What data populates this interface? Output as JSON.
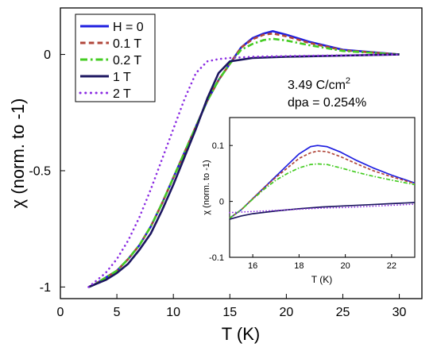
{
  "chart_data": [
    {
      "type": "line",
      "xlabel": "T (K)",
      "ylabel": "χ (norm. to -1)",
      "xlim": [
        0,
        32
      ],
      "ylim": [
        -1.05,
        0.2
      ],
      "xticks": [
        0,
        5,
        10,
        15,
        20,
        25,
        30
      ],
      "yticks": [
        0,
        -0.5,
        -1
      ],
      "ytick_labels": [
        "0",
        "-0.5",
        "-1"
      ],
      "grid": false,
      "legend_position": "top-left",
      "annotations": {
        "dose_value": "3.49 C/cm",
        "dose_exp": "2",
        "dpa": "dpa = 0.254%"
      },
      "series": [
        {
          "name": "H = 0",
          "color": "#1f1fe0",
          "style": "solid",
          "x": [
            2.5,
            3,
            4,
            5,
            6,
            7,
            8,
            9,
            10,
            11,
            12,
            13,
            14,
            15,
            16,
            17,
            18,
            18.8,
            20,
            22,
            25,
            30
          ],
          "y": [
            -1.0,
            -0.99,
            -0.96,
            -0.93,
            -0.88,
            -0.82,
            -0.74,
            -0.64,
            -0.53,
            -0.42,
            -0.31,
            -0.2,
            -0.11,
            -0.04,
            0.03,
            0.07,
            0.09,
            0.1,
            0.085,
            0.055,
            0.02,
            0.0
          ]
        },
        {
          "name": "0.1 T",
          "color": "#b0463a",
          "style": "dashed",
          "x": [
            2.5,
            3,
            4,
            5,
            6,
            7,
            8,
            9,
            10,
            11,
            12,
            13,
            14,
            15,
            16,
            17,
            18,
            18.8,
            20,
            22,
            25,
            30
          ],
          "y": [
            -1.0,
            -0.99,
            -0.96,
            -0.93,
            -0.88,
            -0.82,
            -0.74,
            -0.64,
            -0.53,
            -0.42,
            -0.31,
            -0.2,
            -0.11,
            -0.04,
            0.03,
            0.065,
            0.085,
            0.09,
            0.078,
            0.05,
            0.018,
            0.0
          ]
        },
        {
          "name": "0.2 T",
          "color": "#44cc22",
          "style": "dashdot",
          "x": [
            2.5,
            3,
            4,
            5,
            6,
            7,
            8,
            9,
            10,
            11,
            12,
            13,
            14,
            15,
            16,
            17,
            18,
            18.8,
            20,
            22,
            25,
            30
          ],
          "y": [
            -1.0,
            -0.99,
            -0.96,
            -0.93,
            -0.88,
            -0.82,
            -0.74,
            -0.64,
            -0.53,
            -0.42,
            -0.31,
            -0.2,
            -0.11,
            -0.04,
            0.02,
            0.045,
            0.062,
            0.067,
            0.06,
            0.04,
            0.015,
            0.0
          ]
        },
        {
          "name": "1 T",
          "color": "#1c1660",
          "style": "solid",
          "x": [
            2.5,
            3,
            4,
            5,
            6,
            7,
            8,
            9,
            10,
            11,
            12,
            13,
            14,
            15,
            17,
            20,
            25,
            30
          ],
          "y": [
            -1.0,
            -0.99,
            -0.97,
            -0.94,
            -0.9,
            -0.84,
            -0.77,
            -0.67,
            -0.56,
            -0.44,
            -0.32,
            -0.19,
            -0.08,
            -0.03,
            -0.015,
            -0.01,
            -0.005,
            0.0
          ]
        },
        {
          "name": "2 T",
          "color": "#8a2be2",
          "style": "dotted",
          "x": [
            2.5,
            3,
            4,
            5,
            6,
            7,
            8,
            9,
            10,
            11,
            12,
            13,
            14,
            15,
            17,
            20,
            25,
            30
          ],
          "y": [
            -1.0,
            -0.98,
            -0.94,
            -0.88,
            -0.8,
            -0.7,
            -0.58,
            -0.45,
            -0.32,
            -0.19,
            -0.08,
            -0.03,
            -0.02,
            -0.015,
            -0.01,
            -0.007,
            -0.004,
            0.0
          ]
        }
      ]
    },
    {
      "type": "line",
      "xlabel": "T (K)",
      "ylabel": "χ (norm. to -1)",
      "xlim": [
        15,
        23
      ],
      "ylim": [
        -0.1,
        0.15
      ],
      "xticks": [
        16,
        18,
        20,
        22
      ],
      "yticks": [
        0.1,
        0,
        -0.1
      ],
      "ytick_labels": [
        "0.1",
        "0",
        "-0.1"
      ],
      "grid": false,
      "series": [
        {
          "color": "#1f1fe0",
          "style": "solid",
          "x": [
            15,
            15.5,
            16,
            16.5,
            17,
            17.5,
            18,
            18.5,
            18.8,
            19.2,
            19.8,
            20.5,
            21.2,
            22,
            23
          ],
          "y": [
            -0.03,
            -0.015,
            0.005,
            0.025,
            0.045,
            0.065,
            0.085,
            0.098,
            0.1,
            0.098,
            0.088,
            0.073,
            0.06,
            0.047,
            0.033
          ]
        },
        {
          "color": "#b0463a",
          "style": "dashed",
          "x": [
            15,
            15.5,
            16,
            16.5,
            17,
            17.5,
            18,
            18.5,
            18.8,
            19.2,
            19.8,
            20.5,
            21.2,
            22,
            23
          ],
          "y": [
            -0.03,
            -0.015,
            0.005,
            0.025,
            0.043,
            0.06,
            0.077,
            0.087,
            0.09,
            0.089,
            0.08,
            0.067,
            0.055,
            0.044,
            0.032
          ]
        },
        {
          "color": "#44cc22",
          "style": "dashdot",
          "x": [
            15,
            15.5,
            16,
            16.5,
            17,
            17.5,
            18,
            18.5,
            18.8,
            19.2,
            19.8,
            20.5,
            21.2,
            22,
            23
          ],
          "y": [
            -0.03,
            -0.015,
            0.004,
            0.022,
            0.038,
            0.05,
            0.06,
            0.066,
            0.067,
            0.066,
            0.06,
            0.052,
            0.045,
            0.038,
            0.03
          ]
        },
        {
          "color": "#1c1660",
          "style": "solid",
          "x": [
            15,
            15.5,
            16,
            17,
            18,
            19,
            20,
            21,
            22,
            23
          ],
          "y": [
            -0.032,
            -0.026,
            -0.022,
            -0.017,
            -0.013,
            -0.01,
            -0.008,
            -0.006,
            -0.004,
            -0.002
          ]
        },
        {
          "color": "#8a2be2",
          "style": "dotted",
          "x": [
            15,
            15.5,
            16,
            17,
            18,
            19,
            20,
            21,
            22,
            23
          ],
          "y": [
            -0.02,
            -0.019,
            -0.018,
            -0.016,
            -0.014,
            -0.012,
            -0.011,
            -0.009,
            -0.007,
            -0.005
          ]
        }
      ]
    }
  ]
}
